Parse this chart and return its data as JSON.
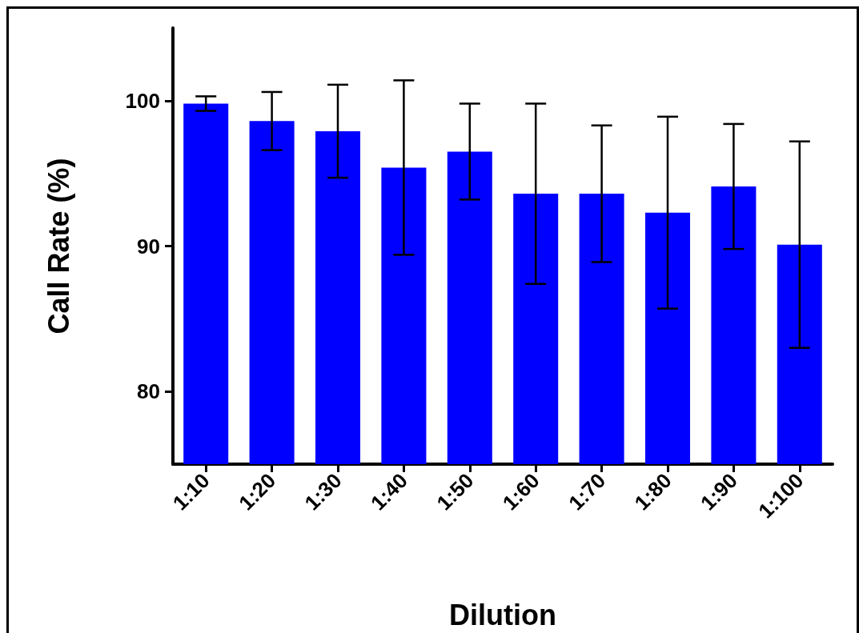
{
  "chart_data": {
    "type": "bar",
    "xlabel": "Dilution",
    "ylabel": "Call Rate (%)",
    "categories": [
      "1:10",
      "1:20",
      "1:30",
      "1:40",
      "1:50",
      "1:60",
      "1:70",
      "1:80",
      "1:90",
      "1:100"
    ],
    "values": [
      99.8,
      98.6,
      97.9,
      95.4,
      96.5,
      93.6,
      93.6,
      92.3,
      94.1,
      90.1
    ],
    "errors": [
      0.5,
      2.0,
      3.2,
      6.0,
      3.3,
      6.2,
      4.7,
      6.6,
      4.3,
      7.1
    ],
    "color": "#0000ff",
    "ylim": [
      75,
      105
    ],
    "yticks": [
      80,
      90,
      100
    ],
    "grid": false
  }
}
